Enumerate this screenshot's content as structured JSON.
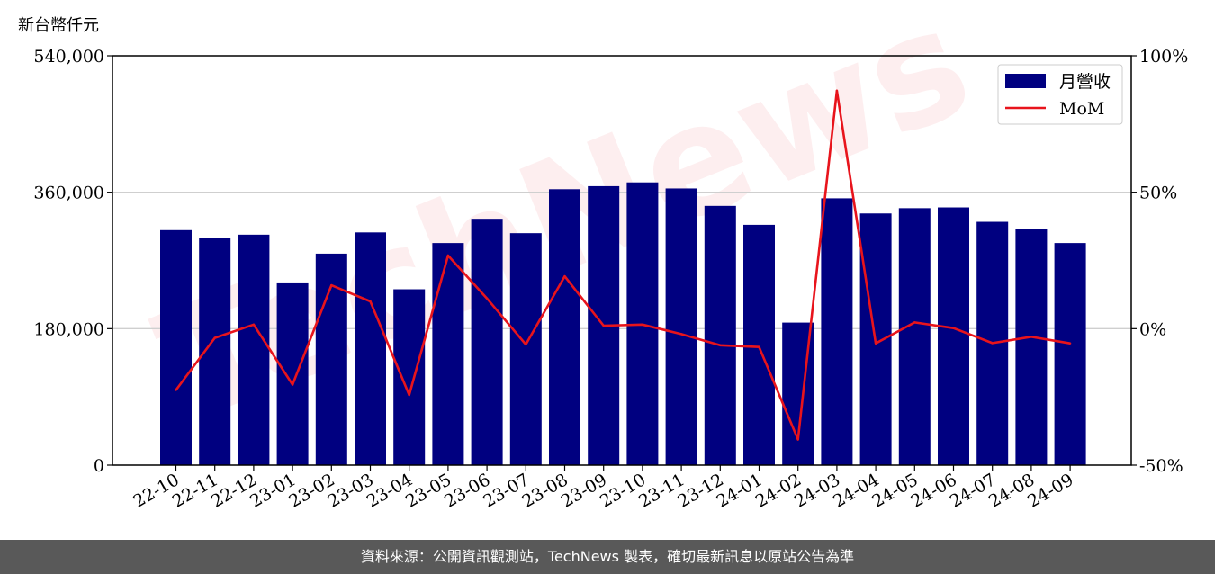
{
  "chart_data": {
    "type": "bar+line",
    "unit_label": "新台幣仟元",
    "categories": [
      "22-10",
      "22-11",
      "22-12",
      "23-01",
      "23-02",
      "23-03",
      "23-04",
      "23-05",
      "23-06",
      "23-07",
      "23-08",
      "23-09",
      "23-10",
      "23-11",
      "23-12",
      "24-01",
      "24-02",
      "24-03",
      "24-04",
      "24-05",
      "24-06",
      "24-07",
      "24-08",
      "24-09"
    ],
    "series": [
      {
        "name": "月營收",
        "kind": "bar",
        "axis": "left",
        "color": "#000080",
        "values": [
          310000,
          300000,
          304000,
          241000,
          279000,
          307000,
          232000,
          293000,
          325000,
          306000,
          364000,
          368000,
          373000,
          365000,
          342000,
          317000,
          188000,
          352000,
          332000,
          339000,
          340000,
          321000,
          311000,
          293000
        ]
      },
      {
        "name": "MoM",
        "kind": "line",
        "axis": "right",
        "color": "#e8141c",
        "values": [
          -22.5,
          -3.4,
          1.5,
          -20.5,
          15.9,
          10.0,
          -24.3,
          26.8,
          11.1,
          -5.8,
          19.2,
          1.1,
          1.5,
          -2.0,
          -6.1,
          -6.7,
          -40.6,
          87.2,
          -5.4,
          2.3,
          0.2,
          -5.3,
          -3.0,
          -5.4
        ]
      }
    ],
    "left_axis": {
      "range": [
        0,
        540000
      ],
      "ticks": [
        0,
        180000,
        360000,
        540000
      ],
      "tick_labels": [
        "0",
        "180,000",
        "360,000",
        "540,000"
      ]
    },
    "right_axis": {
      "range": [
        -50,
        100
      ],
      "ticks": [
        -50,
        0,
        50,
        100
      ],
      "tick_labels": [
        "-50%",
        "0%",
        "50%",
        "100%"
      ]
    },
    "grid": "horizontal",
    "legend_position": "top-right"
  },
  "watermark": "TechNews",
  "footer": {
    "text": "資料來源：公開資訊觀測站，TechNews 製表，確切最新訊息以原站公告為準"
  }
}
